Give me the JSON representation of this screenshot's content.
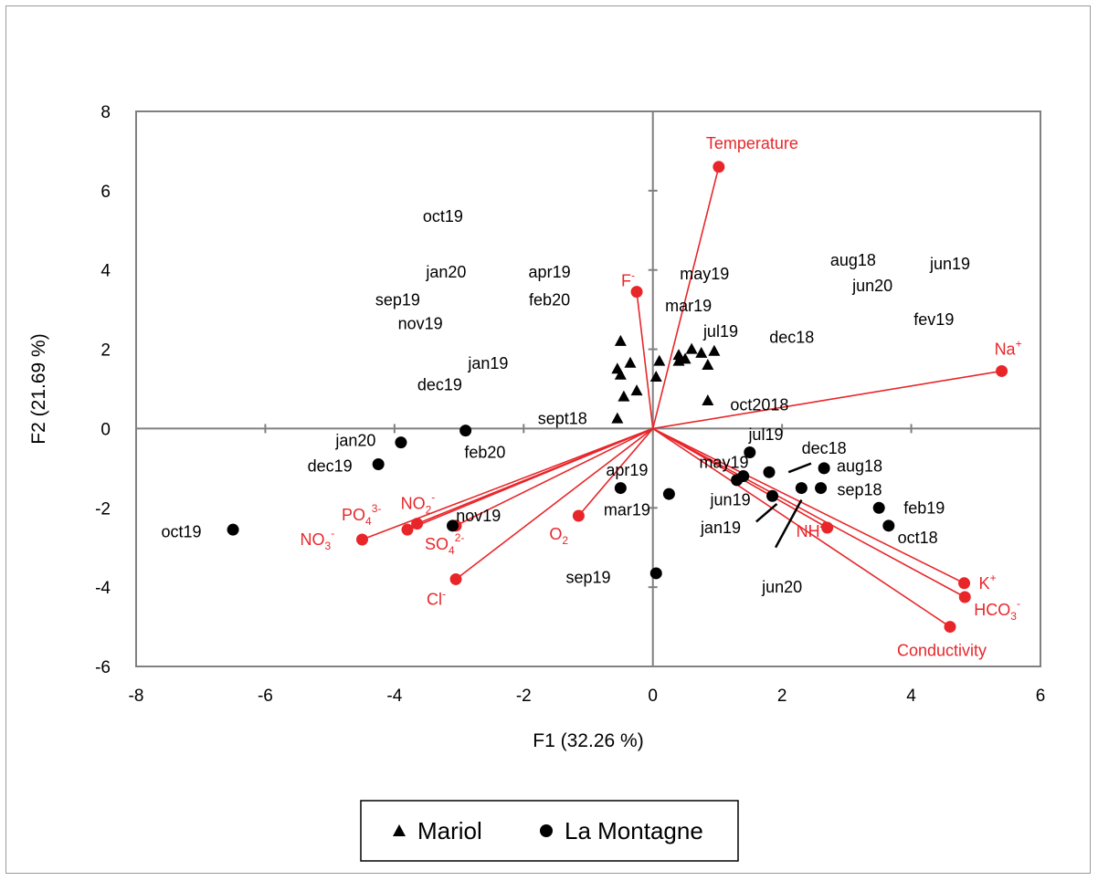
{
  "chart_data": {
    "type": "scatter",
    "subtype": "PCA biplot",
    "xlabel": "F1 (32.26 %)",
    "ylabel": "F2 (21.69 %)",
    "xlim": [
      -8,
      6
    ],
    "ylim": [
      -6,
      8
    ],
    "xticks": [
      -8,
      -6,
      -4,
      -2,
      0,
      2,
      4,
      6
    ],
    "yticks": [
      -6,
      -4,
      -2,
      0,
      2,
      4,
      6,
      8
    ],
    "grid": false,
    "legend_position": "bottom",
    "colors": {
      "variables": "#e8262a",
      "observations": "#000000",
      "axes": "#808080"
    },
    "legend": [
      {
        "marker": "triangle",
        "label": "Mariol"
      },
      {
        "marker": "circle",
        "label": "La Montagne"
      }
    ],
    "variables": [
      {
        "label": "Temperature",
        "sub": "",
        "sup": "",
        "x": 1.02,
        "y": 6.6
      },
      {
        "label": "F",
        "sub": "",
        "sup": "-",
        "x": -0.25,
        "y": 3.45
      },
      {
        "label": "Na",
        "sub": "",
        "sup": "+",
        "x": 5.4,
        "y": 1.45
      },
      {
        "label": "K",
        "sub": "",
        "sup": "+",
        "x": 4.82,
        "y": -3.9
      },
      {
        "label": "HCO",
        "sub": "3",
        "sup": "-",
        "x": 4.83,
        "y": -4.25
      },
      {
        "label": "Conductivity",
        "sub": "",
        "sup": "",
        "x": 4.6,
        "y": -5.0
      },
      {
        "label": "NH",
        "sub": "",
        "sup": "4-",
        "x": 2.7,
        "y": -2.5
      },
      {
        "label": "O",
        "sub": "2",
        "sup": "",
        "x": -1.15,
        "y": -2.2
      },
      {
        "label": "Cl",
        "sub": "",
        "sup": "-",
        "x": -3.05,
        "y": -3.8
      },
      {
        "label": "SO",
        "sub": "4",
        "sup": "2-",
        "x": -3.05,
        "y": -2.45
      },
      {
        "label": "NO",
        "sub": "2",
        "sup": "-",
        "x": -3.65,
        "y": -2.4
      },
      {
        "label": "PO",
        "sub": "4",
        "sup": "3-",
        "x": -3.8,
        "y": -2.55
      },
      {
        "label": "NO",
        "sub": "3",
        "sup": "-",
        "x": -4.5,
        "y": -2.8
      }
    ],
    "series": [
      {
        "name": "Mariol",
        "marker": "triangle",
        "points": [
          {
            "x": -0.5,
            "y": 2.2
          },
          {
            "x": -0.35,
            "y": 1.65
          },
          {
            "x": -0.55,
            "y": 1.5
          },
          {
            "x": -0.5,
            "y": 1.35
          },
          {
            "x": -0.25,
            "y": 0.95
          },
          {
            "x": -0.45,
            "y": 0.8
          },
          {
            "x": -0.55,
            "y": 0.25
          },
          {
            "x": 0.1,
            "y": 1.7
          },
          {
            "x": 0.05,
            "y": 1.3
          },
          {
            "x": 0.4,
            "y": 1.85
          },
          {
            "x": 0.5,
            "y": 1.75
          },
          {
            "x": 0.6,
            "y": 2.0
          },
          {
            "x": 0.75,
            "y": 1.9
          },
          {
            "x": 0.85,
            "y": 1.6
          },
          {
            "x": 0.95,
            "y": 1.95
          },
          {
            "x": 0.4,
            "y": 1.7
          },
          {
            "x": 0.85,
            "y": 0.7
          }
        ]
      },
      {
        "name": "La Montagne",
        "marker": "circle",
        "points": [
          {
            "x": -6.5,
            "y": -2.55
          },
          {
            "x": -3.9,
            "y": -0.35
          },
          {
            "x": -4.25,
            "y": -0.9
          },
          {
            "x": -2.9,
            "y": -0.05
          },
          {
            "x": -3.1,
            "y": -2.45
          },
          {
            "x": -0.5,
            "y": -1.5
          },
          {
            "x": 0.25,
            "y": -1.65
          },
          {
            "x": 0.05,
            "y": -3.65
          },
          {
            "x": 1.5,
            "y": -0.6
          },
          {
            "x": 1.3,
            "y": -1.3
          },
          {
            "x": 1.4,
            "y": -1.2
          },
          {
            "x": 1.8,
            "y": -1.1
          },
          {
            "x": 1.85,
            "y": -1.7
          },
          {
            "x": 2.3,
            "y": -1.5
          },
          {
            "x": 2.6,
            "y": -1.5
          },
          {
            "x": 2.65,
            "y": -1.0
          },
          {
            "x": 3.5,
            "y": -2.0
          },
          {
            "x": 3.65,
            "y": -2.45
          }
        ]
      }
    ],
    "observation_labels": [
      {
        "text": "oct19",
        "x": -3.25,
        "y": 5.35
      },
      {
        "text": "jan20",
        "x": -3.2,
        "y": 3.95
      },
      {
        "text": "sep19",
        "x": -3.95,
        "y": 3.25
      },
      {
        "text": "nov19",
        "x": -3.6,
        "y": 2.65
      },
      {
        "text": "jan19",
        "x": -2.55,
        "y": 1.65
      },
      {
        "text": "dec19",
        "x": -3.3,
        "y": 1.1
      },
      {
        "text": "apr19",
        "x": -1.6,
        "y": 3.95
      },
      {
        "text": "feb20",
        "x": -1.6,
        "y": 3.25
      },
      {
        "text": "may19",
        "x": 0.8,
        "y": 3.9
      },
      {
        "text": "mar19",
        "x": 0.55,
        "y": 3.1
      },
      {
        "text": "jul19",
        "x": 1.05,
        "y": 2.45
      },
      {
        "text": "dec18",
        "x": 2.15,
        "y": 2.3
      },
      {
        "text": "aug18",
        "x": 3.1,
        "y": 4.25
      },
      {
        "text": "jun20",
        "x": 3.4,
        "y": 3.6
      },
      {
        "text": "jun19",
        "x": 4.6,
        "y": 4.15
      },
      {
        "text": "fev19",
        "x": 4.35,
        "y": 2.75
      },
      {
        "text": "oct2018",
        "x": 1.65,
        "y": 0.6
      },
      {
        "text": "sept18",
        "x": -1.4,
        "y": 0.25
      },
      {
        "text": "jan20",
        "x": -4.6,
        "y": -0.3
      },
      {
        "text": "dec19",
        "x": -5.0,
        "y": -0.95
      },
      {
        "text": "feb20",
        "x": -2.6,
        "y": -0.6
      },
      {
        "text": "nov19",
        "x": -2.7,
        "y": -2.2
      },
      {
        "text": "oct19",
        "x": -7.3,
        "y": -2.6
      },
      {
        "text": "apr19",
        "x": -0.4,
        "y": -1.05
      },
      {
        "text": "mar19",
        "x": -0.4,
        "y": -2.05
      },
      {
        "text": "may19",
        "x": 1.1,
        "y": -0.85
      },
      {
        "text": "jun19",
        "x": 1.2,
        "y": -1.8
      },
      {
        "text": "jan19",
        "x": 1.05,
        "y": -2.5
      },
      {
        "text": "jul19",
        "x": 1.75,
        "y": -0.15
      },
      {
        "text": "dec18",
        "x": 2.65,
        "y": -0.5
      },
      {
        "text": "aug18",
        "x": 3.2,
        "y": -0.95
      },
      {
        "text": "sep18",
        "x": 3.2,
        "y": -1.55
      },
      {
        "text": "feb19",
        "x": 4.2,
        "y": -2.0
      },
      {
        "text": "oct18",
        "x": 4.1,
        "y": -2.75
      },
      {
        "text": "jun20",
        "x": 2.0,
        "y": -4.0
      },
      {
        "text": "sep19",
        "x": -1.0,
        "y": -3.75
      }
    ],
    "leader_lines": [
      {
        "from": [
          2.1,
          -1.1
        ],
        "to": [
          2.45,
          -0.88
        ]
      },
      {
        "from": [
          1.6,
          -2.35
        ],
        "to": [
          1.92,
          -1.9
        ]
      },
      {
        "from": [
          1.9,
          -3.0
        ],
        "to": [
          2.3,
          -1.8
        ]
      }
    ]
  }
}
